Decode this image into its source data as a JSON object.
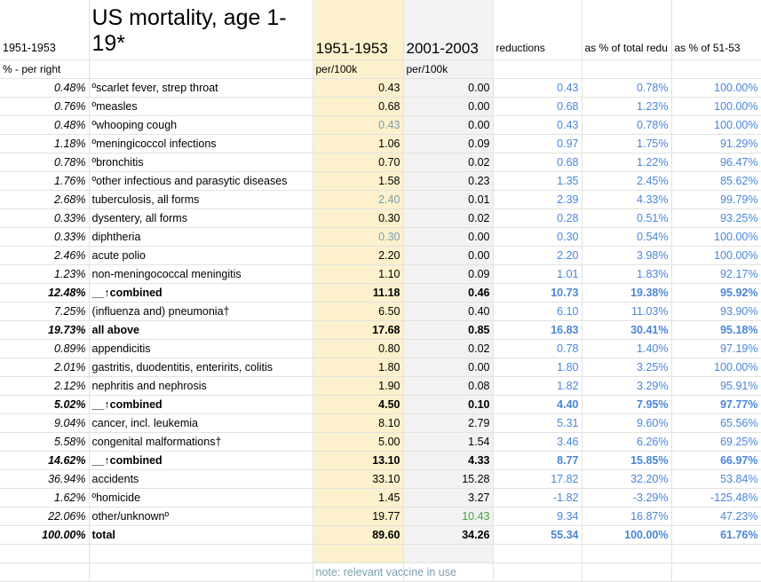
{
  "header": {
    "col_a": "1951-1953",
    "title": "US mortality, age 1-19*",
    "col_c": "1951-1953",
    "col_d": "2001-2003",
    "col_e": "reductions",
    "col_f": "as % of total redu",
    "col_g": "as % of 51-53"
  },
  "subheader": {
    "col_a": "% - per right",
    "col_c": "per/100k",
    "col_d": "per/100k"
  },
  "rows": [
    {
      "pct": "0.48%",
      "cause": "ºscarlet fever, strep throat",
      "v1951": "0.43",
      "v2001": "0.00",
      "red": "0.43",
      "pct_total": "0.78%",
      "pct_5153": "100.00%"
    },
    {
      "pct": "0.76%",
      "cause": "ºmeasles",
      "v1951": "0.68",
      "v2001": "0.00",
      "red": "0.68",
      "pct_total": "1.23%",
      "pct_5153": "100.00%"
    },
    {
      "pct": "0.48%",
      "cause": "ºwhooping cough",
      "v1951": "0.43",
      "v2001": "0.00",
      "red": "0.43",
      "pct_total": "0.78%",
      "pct_5153": "100.00%"
    },
    {
      "pct": "1.18%",
      "cause": "ºmeningicoccol infections",
      "v1951": "1.06",
      "v2001": "0.09",
      "red": "0.97",
      "pct_total": "1.75%",
      "pct_5153": "91.29%"
    },
    {
      "pct": "0.78%",
      "cause": "ºbronchitis",
      "v1951": "0.70",
      "v2001": "0.02",
      "red": "0.68",
      "pct_total": "1.22%",
      "pct_5153": "96.47%"
    },
    {
      "pct": "1.76%",
      "cause": "ºother infectious and parasytic diseases",
      "v1951": "1.58",
      "v2001": "0.23",
      "red": "1.35",
      "pct_total": "2.45%",
      "pct_5153": "85.62%"
    },
    {
      "pct": "2.68%",
      "cause": "tuberculosis, all forms",
      "v1951": "2.40",
      "v2001": "0.01",
      "red": "2.39",
      "pct_total": "4.33%",
      "pct_5153": "99.79%"
    },
    {
      "pct": "0.33%",
      "cause": "dysentery, all forms",
      "v1951": "0.30",
      "v2001": "0.02",
      "red": "0.28",
      "pct_total": "0.51%",
      "pct_5153": "93.25%"
    },
    {
      "pct": "0.33%",
      "cause": "diphtheria",
      "v1951": "0.30",
      "v2001": "0.00",
      "red": "0.30",
      "pct_total": "0.54%",
      "pct_5153": "100.00%"
    },
    {
      "pct": "2.46%",
      "cause": "acute polio",
      "v1951": "2.20",
      "v2001": "0.00",
      "red": "2.20",
      "pct_total": "3.98%",
      "pct_5153": "100.00%"
    },
    {
      "pct": "1.23%",
      "cause": "non-meningococcal meningitis",
      "v1951": "1.10",
      "v2001": "0.09",
      "red": "1.01",
      "pct_total": "1.83%",
      "pct_5153": "92.17%"
    },
    {
      "pct": "12.48%",
      "cause": "__↑combined",
      "v1951": "11.18",
      "v2001": "0.46",
      "red": "10.73",
      "pct_total": "19.38%",
      "pct_5153": "95.92%"
    },
    {
      "pct": "7.25%",
      "cause": "(influenza and) pneumonia†",
      "v1951": "6.50",
      "v2001": "0.40",
      "red": "6.10",
      "pct_total": "11.03%",
      "pct_5153": "93.90%"
    },
    {
      "pct": "19.73%",
      "cause": "all above",
      "v1951": "17.68",
      "v2001": "0.85",
      "red": "16.83",
      "pct_total": "30.41%",
      "pct_5153": "95.18%"
    },
    {
      "pct": "0.89%",
      "cause": "appendicitis",
      "v1951": "0.80",
      "v2001": "0.02",
      "red": "0.78",
      "pct_total": "1.40%",
      "pct_5153": "97.19%"
    },
    {
      "pct": "2.01%",
      "cause": "gastritis, duodentitis, enteririts, colitis",
      "v1951": "1.80",
      "v2001": "0.00",
      "red": "1.80",
      "pct_total": "3.25%",
      "pct_5153": "100.00%"
    },
    {
      "pct": "2.12%",
      "cause": "nephritis and nephrosis",
      "v1951": "1.90",
      "v2001": "0.08",
      "red": "1.82",
      "pct_total": "3.29%",
      "pct_5153": "95.91%"
    },
    {
      "pct": "5.02%",
      "cause": "__↑combined",
      "v1951": "4.50",
      "v2001": "0.10",
      "red": "4.40",
      "pct_total": "7.95%",
      "pct_5153": "97.77%"
    },
    {
      "pct": "9.04%",
      "cause": "cancer, incl. leukemia",
      "v1951": "8.10",
      "v2001": "2.79",
      "red": "5.31",
      "pct_total": "9.60%",
      "pct_5153": "65.56%"
    },
    {
      "pct": "5.58%",
      "cause": "congenital malformations†",
      "v1951": "5.00",
      "v2001": "1.54",
      "red": "3.46",
      "pct_total": "6.26%",
      "pct_5153": "69.25%"
    },
    {
      "pct": "14.62%",
      "cause": "__↑combined",
      "v1951": "13.10",
      "v2001": "4.33",
      "red": "8.77",
      "pct_total": "15.85%",
      "pct_5153": "66.97%"
    },
    {
      "pct": "36.94%",
      "cause": "accidents",
      "v1951": "33.10",
      "v2001": "15.28",
      "red": "17.82",
      "pct_total": "32.20%",
      "pct_5153": "53.84%"
    },
    {
      "pct": "1.62%",
      "cause": "ºhomicide",
      "v1951": "1.45",
      "v2001": "3.27",
      "red": "-1.82",
      "pct_total": "-3.29%",
      "pct_5153": "-125.48%"
    },
    {
      "pct": "22.06%",
      "cause": "other/unknownº",
      "v1951": "19.77",
      "v2001": "10.43",
      "red": "9.34",
      "pct_total": "16.87%",
      "pct_5153": "47.23%"
    },
    {
      "pct": "100.00%",
      "cause": "total",
      "v1951": "89.60",
      "v2001": "34.26",
      "red": "55.34",
      "pct_total": "100.00%",
      "pct_5153": "61.76%"
    }
  ],
  "note": "note: relevant vaccine in use",
  "colors": {
    "vaccine_highlight": "#fcf1cc",
    "modern_column": "#f2f2f2",
    "formula_blue": "#4a86d8",
    "muted_vaccine_text": "#7c9dad",
    "green_text": "#43a047"
  }
}
